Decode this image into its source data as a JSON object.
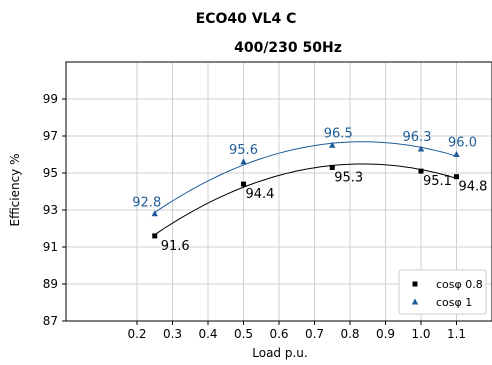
{
  "chart_data": {
    "type": "line",
    "title": "ECO40 VL4 C",
    "subtitle": "400/230 50Hz",
    "xlabel": "Load p.u.",
    "ylabel": "Efficiency %",
    "xlim": [
      0.0,
      1.2
    ],
    "ylim": [
      87,
      101
    ],
    "xticks": [
      "0.2",
      "0.3",
      "0.4",
      "0.5",
      "0.6",
      "0.7",
      "0.8",
      "0.9",
      "1.0",
      "1.1"
    ],
    "yticks": [
      "87",
      "89",
      "91",
      "93",
      "95",
      "97",
      "99"
    ],
    "grid": true,
    "legend_position": "bottom-right",
    "series": [
      {
        "name": "cosφ 0.8",
        "color": "#000000",
        "marker": "square",
        "x": [
          0.25,
          0.5,
          0.75,
          1.0,
          1.1
        ],
        "y": [
          91.6,
          94.4,
          95.3,
          95.1,
          94.8
        ],
        "labels": [
          "91.6",
          "94.4",
          "95.3",
          "95.1",
          "94.8"
        ]
      },
      {
        "name": "cosφ 1",
        "color": "#1f5c99",
        "marker": "triangle",
        "x": [
          0.25,
          0.5,
          0.75,
          1.0,
          1.1
        ],
        "y": [
          92.8,
          95.6,
          96.5,
          96.3,
          96.0
        ],
        "labels": [
          "92.8",
          "95.6",
          "96.5",
          "96.3",
          "96.0"
        ]
      }
    ]
  }
}
